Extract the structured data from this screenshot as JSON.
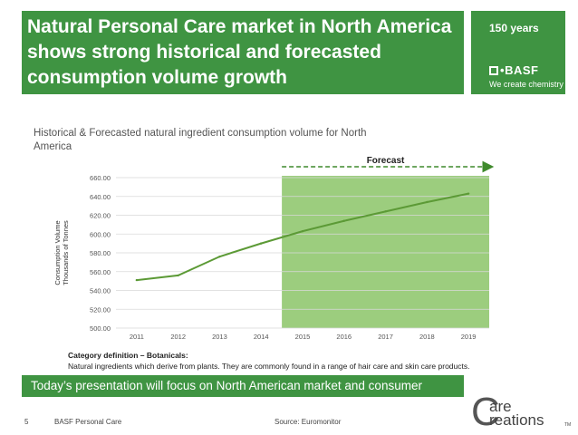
{
  "header": {
    "title": "Natural Personal Care market in North America shows strong historical and forecasted consumption volume growth",
    "brand_years": "150 years",
    "brand_name": "BASF",
    "brand_tagline": "We create chemistry"
  },
  "subtitle": "Historical & Forecasted natural ingredient consumption volume for North America",
  "chart_data": {
    "type": "line",
    "title": "Historical & Forecasted natural ingredient consumption volume for North America",
    "ylabel_line1": "Consumption Volume",
    "ylabel_line2": "Thousands of Tonnes",
    "xlabel": "",
    "categories": [
      "2011",
      "2012",
      "2013",
      "2014",
      "2015",
      "2016",
      "2017",
      "2018",
      "2019"
    ],
    "series": [
      {
        "name": "Consumption Volume",
        "values": [
          551,
          556,
          576,
          590,
          603,
          614,
          624,
          634,
          643
        ]
      }
    ],
    "ylim": [
      500,
      660
    ],
    "yticks": [
      "500.00",
      "520.00",
      "540.00",
      "560.00",
      "580.00",
      "600.00",
      "620.00",
      "640.00",
      "660.00"
    ],
    "ytick_values": [
      500,
      520,
      540,
      560,
      580,
      600,
      620,
      640,
      660
    ],
    "forecast_label": "Forecast",
    "forecast_start": "2015",
    "forecast_end": "2019",
    "colors": {
      "line": "#5c9a36",
      "forecast_fill": "#9ccd7e",
      "grid": "#d9d9d9",
      "arrow": "#3f8a2c"
    },
    "grid": true
  },
  "category_definition": {
    "heading": "Category definition – Botanicals:",
    "text": "Natural ingredients which derive from plants. They are commonly found in a range of hair care and skin care products."
  },
  "focus_banner": "Today’s presentation will focus on North American market and consumer",
  "footer": {
    "page_number": "5",
    "brand": "BASF Personal Care",
    "source": "Source: Euromonitor"
  },
  "care_logo": {
    "letter": "C",
    "line1": "are",
    "line2": "reations",
    "tm": "TM"
  },
  "colors": {
    "brand_green": "#3f9442"
  }
}
